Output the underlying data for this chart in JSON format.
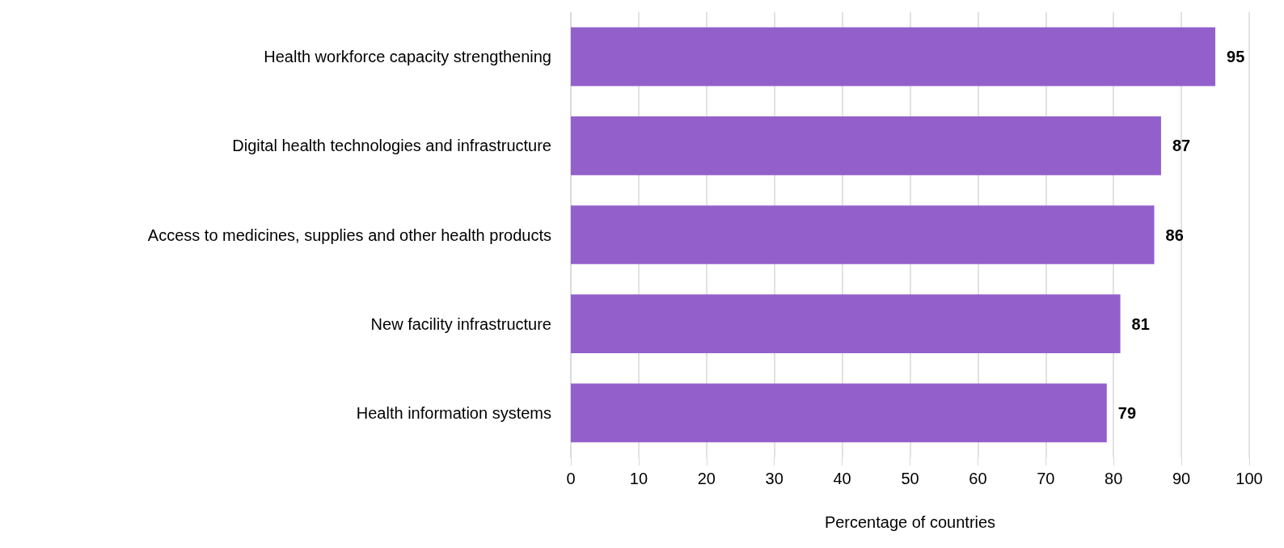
{
  "chart_data": {
    "type": "bar",
    "orientation": "horizontal",
    "xlabel": "Percentage of countries",
    "categories": [
      "Health workforce capacity strengthening",
      "Digital health technologies and infrastructure",
      "Access to medicines, supplies and other health products",
      "New facility infrastructure",
      "Health information systems"
    ],
    "values": [
      95,
      87,
      86,
      81,
      79
    ],
    "color": "#9360cb",
    "xlim": [
      0,
      100
    ],
    "xticks": [
      0,
      10,
      20,
      30,
      40,
      50,
      60,
      70,
      80,
      90,
      100
    ],
    "grid": "x",
    "data_labels": true
  }
}
